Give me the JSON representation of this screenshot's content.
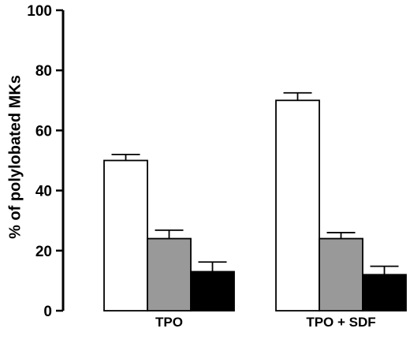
{
  "chart_data": {
    "type": "bar",
    "title": "",
    "xlabel": "",
    "ylabel": "% of polylobated MKs",
    "ylim": [
      0,
      100
    ],
    "yticks": [
      "0",
      "20",
      "40",
      "60",
      "80",
      "100"
    ],
    "grid": false,
    "categories": [
      "TPO",
      "TPO + SDF"
    ],
    "series": [
      {
        "color": "#ffffff",
        "values": [
          50,
          70
        ],
        "errors": [
          2,
          2.5
        ]
      },
      {
        "color": "#999999",
        "values": [
          24,
          24
        ],
        "errors": [
          2.8,
          2
        ]
      },
      {
        "color": "#000000",
        "values": [
          13,
          12
        ],
        "errors": [
          3.2,
          2.8
        ]
      }
    ]
  }
}
